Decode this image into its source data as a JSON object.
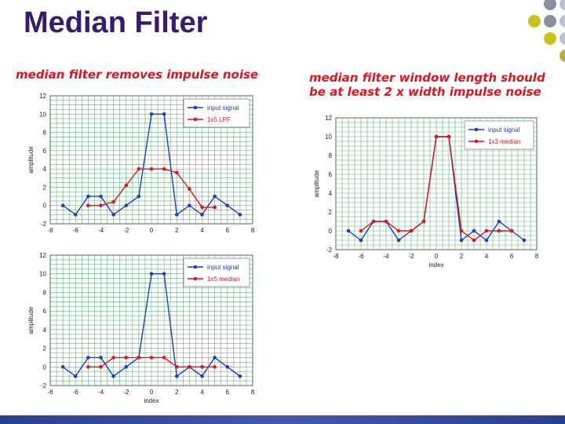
{
  "slide": {
    "title": "Median Filter",
    "caption_left": "median filter removes impulse noise",
    "caption_right": "median filter window length should be at least 2 x width impulse noise",
    "dot_colors": [
      "#8a8fa0",
      "#bcc2d0",
      "#c9c41a",
      "#b5b13a"
    ]
  },
  "chart_data": [
    {
      "type": "line",
      "xlabel": "",
      "ylabel": "amplitude",
      "xlim": [
        -8,
        8
      ],
      "ylim": [
        -2,
        12
      ],
      "xticks": [
        -8,
        -6,
        -4,
        -2,
        0,
        2,
        4,
        6,
        8
      ],
      "yticks": [
        -2,
        0,
        2,
        4,
        6,
        8,
        10,
        12
      ],
      "grid": true,
      "legend_position": "top-right",
      "series": [
        {
          "name": "input signal",
          "color": "#1a3fc0",
          "x": [
            -7,
            -6,
            -5,
            -4,
            -3,
            -2,
            -1,
            0,
            1,
            2,
            3,
            4,
            5,
            6,
            7
          ],
          "y": [
            0,
            -1,
            1,
            1,
            -1,
            0,
            1,
            10,
            10,
            -1,
            0,
            -1,
            1,
            0,
            -1
          ]
        },
        {
          "name": "1x5 LPF",
          "color": "#e0141e",
          "x": [
            -5,
            -4,
            -3,
            -2,
            -1,
            0,
            1,
            2,
            3,
            4,
            5
          ],
          "y": [
            0,
            0,
            0.4,
            2.2,
            4,
            4,
            4,
            3.6,
            1.8,
            -0.2,
            -0.2
          ]
        }
      ]
    },
    {
      "type": "line",
      "xlabel": "index",
      "ylabel": "amplitude",
      "xlim": [
        -8,
        8
      ],
      "ylim": [
        -2,
        12
      ],
      "xticks": [
        -8,
        -6,
        -4,
        -2,
        0,
        2,
        4,
        6,
        8
      ],
      "yticks": [
        -2,
        0,
        2,
        4,
        6,
        8,
        10,
        12
      ],
      "grid": true,
      "legend_position": "top-right",
      "series": [
        {
          "name": "input signal",
          "color": "#1a3fc0",
          "x": [
            -7,
            -6,
            -5,
            -4,
            -3,
            -2,
            -1,
            0,
            1,
            2,
            3,
            4,
            5,
            6,
            7
          ],
          "y": [
            0,
            -1,
            1,
            1,
            -1,
            0,
            1,
            10,
            10,
            -1,
            0,
            -1,
            1,
            0,
            -1
          ]
        },
        {
          "name": "1x5 median",
          "color": "#e0141e",
          "x": [
            -5,
            -4,
            -3,
            -2,
            -1,
            0,
            1,
            2,
            3,
            4,
            5
          ],
          "y": [
            0,
            0,
            1,
            1,
            1,
            1,
            1,
            0,
            0,
            0,
            0
          ]
        }
      ]
    },
    {
      "type": "line",
      "xlabel": "index",
      "ylabel": "amplitude",
      "xlim": [
        -8,
        8
      ],
      "ylim": [
        -2,
        12
      ],
      "xticks": [
        -8,
        -6,
        -4,
        -2,
        0,
        2,
        4,
        6,
        8
      ],
      "yticks": [
        -2,
        0,
        2,
        4,
        6,
        8,
        10,
        12
      ],
      "grid": true,
      "legend_position": "top-right",
      "series": [
        {
          "name": "input signal",
          "color": "#1a3fc0",
          "x": [
            -7,
            -6,
            -5,
            -4,
            -3,
            -2,
            -1,
            0,
            1,
            2,
            3,
            4,
            5,
            6,
            7
          ],
          "y": [
            0,
            -1,
            1,
            1,
            -1,
            0,
            1,
            10,
            10,
            -1,
            0,
            -1,
            1,
            0,
            -1
          ]
        },
        {
          "name": "1x3 median",
          "color": "#e0141e",
          "x": [
            -6,
            -5,
            -4,
            -3,
            -2,
            -1,
            0,
            1,
            2,
            3,
            4,
            5,
            6
          ],
          "y": [
            0,
            1,
            1,
            0,
            0,
            1,
            10,
            10,
            0,
            -1,
            0,
            0,
            0
          ]
        }
      ]
    }
  ]
}
